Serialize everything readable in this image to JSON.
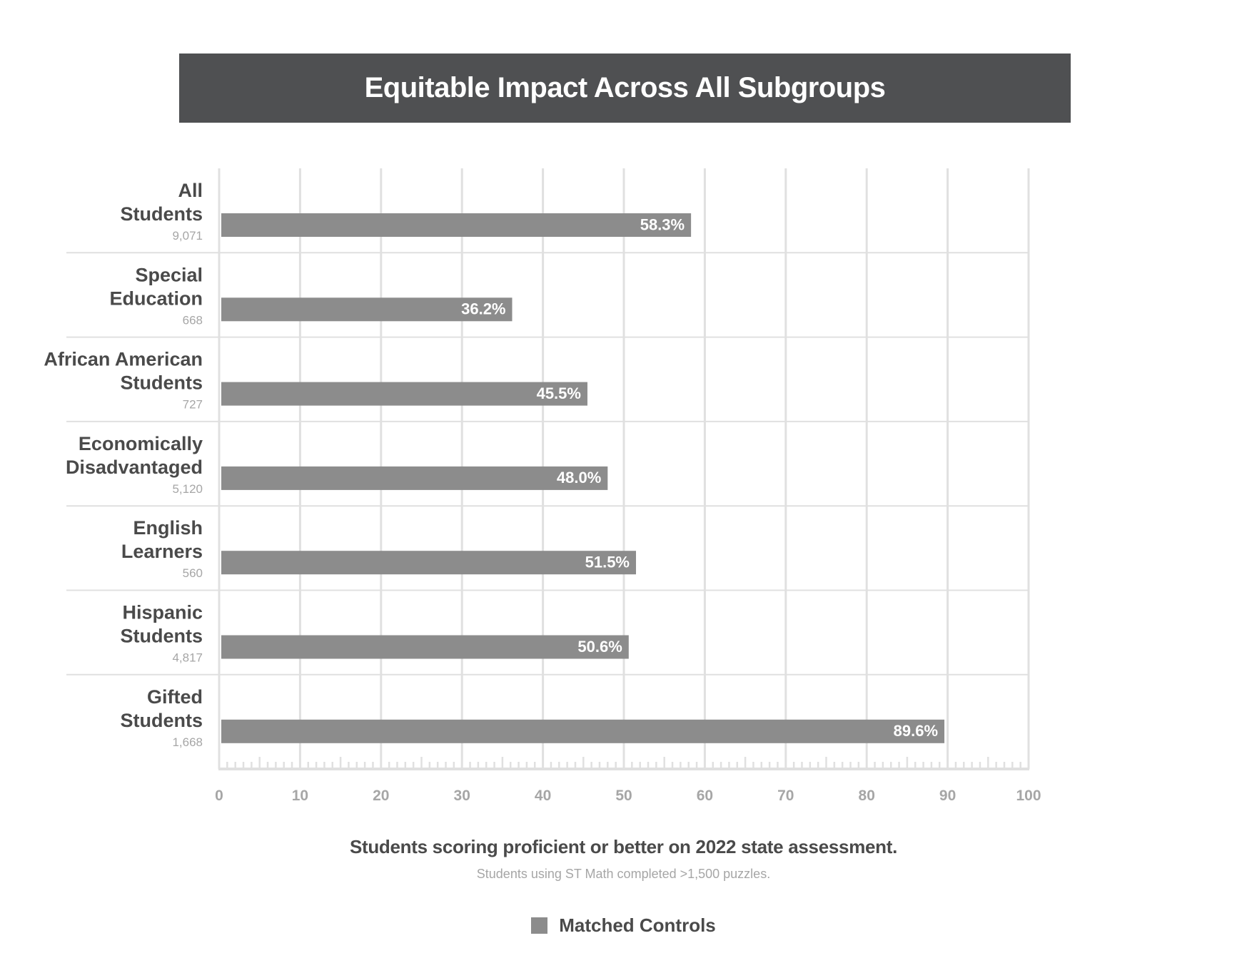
{
  "chart_data": {
    "type": "bar",
    "orientation": "horizontal",
    "title": "Equitable Impact Across All Subgroups",
    "categories": [
      {
        "label": "All Students",
        "count": "9,071"
      },
      {
        "label": "Special Education",
        "count": "668"
      },
      {
        "label": "African American Students",
        "count": "727"
      },
      {
        "label": "Economically Disadvantaged",
        "count": "5,120"
      },
      {
        "label": "English Learners",
        "count": "560"
      },
      {
        "label": "Hispanic Students",
        "count": "4,817"
      },
      {
        "label": "Gifted Students",
        "count": "1,668"
      }
    ],
    "series": [
      {
        "name": "Matched Controls",
        "values": [
          58.3,
          36.2,
          45.5,
          48.0,
          51.5,
          50.6,
          89.6
        ],
        "data_labels": [
          "58.3%",
          "36.2%",
          "45.5%",
          "48.0%",
          "51.5%",
          "50.6%",
          "89.6%"
        ],
        "color": "#8c8c8c"
      }
    ],
    "xlim": [
      0,
      100
    ],
    "xticks": [
      0,
      10,
      20,
      30,
      40,
      50,
      60,
      70,
      80,
      90,
      100
    ],
    "xlabel": "Students scoring proficient or better on 2022 state assessment.",
    "xlabel_note": "Students using ST Math completed >1,500 puzzles.",
    "grid": true,
    "legend_position": "bottom-center"
  },
  "colors": {
    "title_bar": "#4f5052",
    "bar": "#8c8c8c",
    "grid": "#e0e0e0",
    "text_dark": "#4a4a4a",
    "text_muted": "#a6a6a6"
  }
}
